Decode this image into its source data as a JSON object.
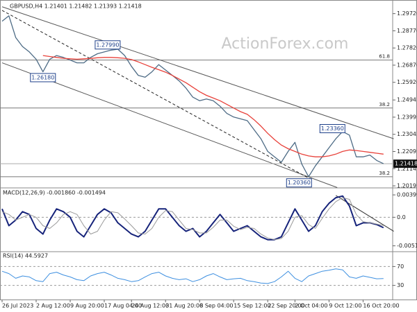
{
  "chart_data": [
    {
      "type": "line",
      "title": "GBPUSD,H4  1.21401 1.21482 1.21393 1.21418",
      "watermark": "ActionForex.com",
      "ylim": [
        1.2012,
        1.3032
      ],
      "yticks": [
        {
          "value": 1.2972,
          "label": "1.29720"
        },
        {
          "value": 1.2877,
          "label": "1.28770"
        },
        {
          "value": 1.2782,
          "label": "1.27820"
        },
        {
          "value": 1.2687,
          "label": "1.26870"
        },
        {
          "value": 1.2592,
          "label": "1.25920"
        },
        1.24945,
        1.23995,
        1.23045,
        1.22095,
        1.21145,
        1.20195
      ],
      "series": [
        {
          "name": "GBPUSD",
          "color": "#4d6b85",
          "values": [
            1.293,
            1.296,
            1.284,
            1.279,
            1.276,
            1.272,
            1.265,
            1.272,
            1.274,
            1.273,
            1.2715,
            1.27,
            1.27,
            1.273,
            1.275,
            1.276,
            1.277,
            1.2775,
            1.274,
            1.268,
            1.263,
            1.262,
            1.265,
            1.269,
            1.266,
            1.263,
            1.26,
            1.256,
            1.251,
            1.249,
            1.25,
            1.249,
            1.246,
            1.242,
            1.24,
            1.239,
            1.238,
            1.233,
            1.228,
            1.221,
            1.218,
            1.215,
            1.221,
            1.226,
            1.214,
            1.207,
            1.213,
            1.218,
            1.223,
            1.228,
            1.232,
            1.23,
            1.218,
            1.218,
            1.219,
            1.216,
            1.2142
          ]
        },
        {
          "name": "SMA",
          "color": "#e8413a",
          "values": [
            null,
            null,
            null,
            null,
            null,
            null,
            1.274,
            1.2735,
            1.273,
            1.2725,
            1.2722,
            1.272,
            1.2722,
            1.2724,
            1.2728,
            1.273,
            1.273,
            1.2728,
            1.2725,
            1.2718,
            1.2705,
            1.269,
            1.2675,
            1.2662,
            1.2648,
            1.263,
            1.261,
            1.259,
            1.2565,
            1.254,
            1.252,
            1.2505,
            1.249,
            1.247,
            1.245,
            1.243,
            1.2415,
            1.2385,
            1.235,
            1.231,
            1.2275,
            1.2245,
            1.2225,
            1.221,
            1.2195,
            1.2185,
            1.218,
            1.218,
            1.2185,
            1.2195,
            1.221,
            1.2218,
            1.2215,
            1.221,
            1.2205,
            1.22,
            1.2195
          ]
        }
      ],
      "trendlines": [
        {
          "x": [
            0,
            57.5
          ],
          "values": [
            1.301,
            1.228
          ],
          "color": "#555555",
          "dash": false
        },
        {
          "x": [
            0,
            49.2
          ],
          "values": [
            1.27,
            1.201
          ],
          "color": "#555555",
          "dash": false
        },
        {
          "x": [
            0,
            45.6
          ],
          "values": [
            1.299,
            1.205
          ],
          "color": "#222222",
          "dash": true
        }
      ],
      "levels": [
        {
          "value": 1.2715,
          "label": "61.8"
        },
        {
          "value": 1.245,
          "label": "38.2"
        },
        {
          "value": 1.207,
          "label": "38.2"
        }
      ],
      "annotations": [
        {
          "value": 1.2799,
          "label": "1.27990",
          "x": 15.5
        },
        {
          "value": 1.2618,
          "label": "1.26180",
          "x": 6
        },
        {
          "value": 1.2336,
          "label": "1.23360",
          "x": 48.5
        },
        {
          "value": 1.2036,
          "label": "1.20360",
          "x": 43.6
        }
      ],
      "last": 1.21418
    },
    {
      "type": "line",
      "title": "MACD(12,26,9) -0.001860 -0.001494",
      "ylim": [
        -0.0059,
        0.005
      ],
      "yticks": [
        0.003999,
        {
          "value": 0,
          "label": "0.0"
        },
        -0.005103
      ],
      "zero_dash": true,
      "series": [
        {
          "name": "MACD",
          "color": "#16237a",
          "width": 2,
          "values": [
            0.0015,
            -0.0015,
            -0.0005,
            0.001,
            0.0005,
            -0.002,
            -0.003,
            -0.0005,
            0.0015,
            0.001,
            0,
            -0.0025,
            -0.0035,
            -0.0015,
            0.0005,
            0.0015,
            0.0008,
            -0.001,
            -0.002,
            -0.003,
            -0.0035,
            -0.0025,
            -0.0005,
            0.0015,
            0.0015,
            0,
            -0.0015,
            -0.0025,
            -0.002,
            -0.0035,
            -0.0025,
            -0.001,
            0.0005,
            -0.001,
            -0.0025,
            -0.002,
            -0.0015,
            -0.0025,
            -0.0035,
            -0.004,
            -0.004,
            -0.0035,
            -0.001,
            0.0015,
            -0.0005,
            -0.0025,
            -0.0015,
            0.001,
            0.0025,
            0.0035,
            0.0038,
            0.002,
            -0.0015,
            -0.001,
            -0.001,
            -0.0013,
            -0.00186
          ]
        },
        {
          "name": "Signal",
          "color": "#9a9a9a",
          "width": 1,
          "values": [
            0.001,
            0.0005,
            -0.0005,
            0,
            0.0005,
            0,
            -0.0015,
            -0.002,
            -0.001,
            0.0005,
            0.001,
            0.0005,
            -0.0015,
            -0.003,
            -0.0025,
            -0.0005,
            0.001,
            0.0008,
            -0.0003,
            -0.0015,
            -0.0028,
            -0.003,
            -0.002,
            0,
            0.0012,
            0.001,
            -0.0005,
            -0.002,
            -0.0022,
            -0.0028,
            -0.0028,
            -0.0018,
            -0.0005,
            -0.0005,
            -0.0016,
            -0.0022,
            -0.0018,
            -0.002,
            -0.003,
            -0.0037,
            -0.004,
            -0.0038,
            -0.0025,
            0,
            0.0003,
            -0.0013,
            -0.002,
            -0.0002,
            0.0015,
            0.0028,
            0.0035,
            0.0032,
            0.0005,
            -0.0008,
            -0.001,
            -0.0012,
            -0.001494
          ]
        }
      ],
      "trendlines": [
        {
          "x": [
            49,
            57.5
          ],
          "values": [
            0.0039,
            -0.0025
          ],
          "color": "#333333",
          "dash": false
        }
      ]
    },
    {
      "type": "line",
      "title": "RSI(14) 44.5927",
      "ylim": [
        0,
        100
      ],
      "yticks": [
        70,
        30
      ],
      "tick_dash": true,
      "series": [
        {
          "name": "RSI",
          "color": "#3d8fe0",
          "width": 1,
          "values": [
            60,
            55,
            45,
            50,
            48,
            40,
            38,
            55,
            58,
            52,
            48,
            42,
            40,
            50,
            55,
            58,
            52,
            45,
            42,
            38,
            40,
            48,
            55,
            58,
            50,
            45,
            42,
            44,
            38,
            42,
            50,
            55,
            48,
            42,
            44,
            45,
            40,
            38,
            35,
            34,
            38,
            48,
            60,
            45,
            38,
            50,
            55,
            60,
            62,
            65,
            63,
            48,
            45,
            50,
            47,
            44,
            44.5927
          ]
        }
      ],
      "xticks": [
        {
          "value": 0,
          "label": "26 Jul 2023"
        },
        {
          "value": 5,
          "label": "2 Aug 12:00"
        },
        {
          "value": 10,
          "label": "9 Aug 20:00"
        },
        {
          "value": 15,
          "label": "17 Aug 04:00"
        },
        {
          "value": 19,
          "label": "24 Aug 12:00"
        },
        {
          "value": 24,
          "label": "31 Aug 20:00"
        },
        {
          "value": 29,
          "label": "8 Sep 04:00"
        },
        {
          "value": 34,
          "label": "15 Sep 12:00"
        },
        {
          "value": 39,
          "label": "22 Sep 20:00"
        },
        {
          "value": 43,
          "label": "2 Oct 04:00"
        },
        {
          "value": 48,
          "label": "9 Oct 12:00"
        },
        {
          "value": 53,
          "label": "16 Oct 20:00"
        }
      ]
    }
  ]
}
